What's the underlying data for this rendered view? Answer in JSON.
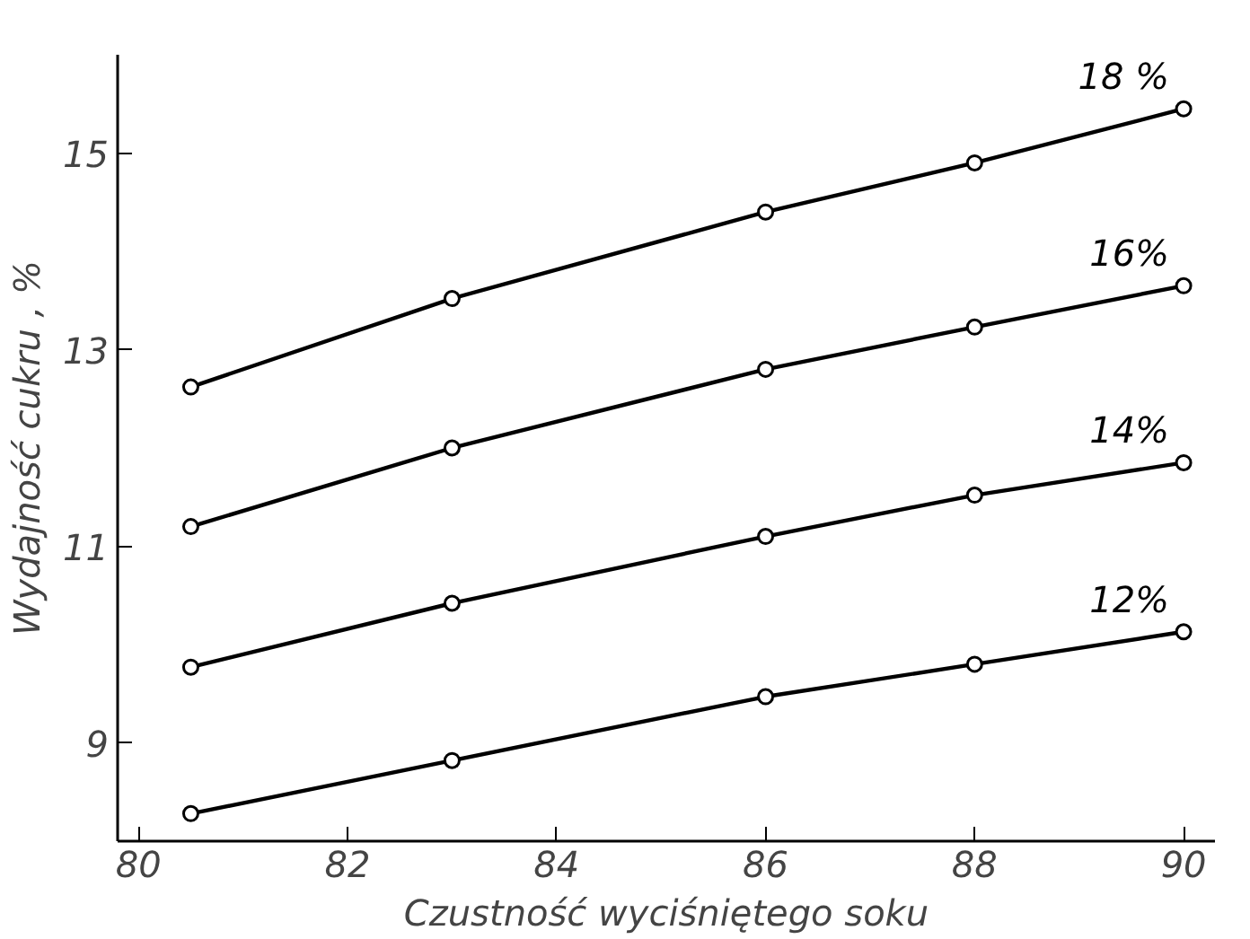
{
  "chart_data": {
    "type": "line",
    "xlabel": "Czustność wyciśniętego soku",
    "ylabel": "Wydajność cukru , %",
    "x": [
      80.5,
      83,
      86,
      88,
      90
    ],
    "series": [
      {
        "name": "18 %",
        "color": "#000000",
        "values": [
          12.62,
          13.52,
          14.4,
          14.9,
          15.45
        ]
      },
      {
        "name": "16%",
        "color": "#000000",
        "values": [
          11.2,
          12.0,
          12.8,
          13.23,
          13.65
        ]
      },
      {
        "name": "14%",
        "color": "#000000",
        "values": [
          9.77,
          10.42,
          11.1,
          11.52,
          11.85
        ]
      },
      {
        "name": "12%",
        "color": "#000000",
        "values": [
          8.28,
          8.82,
          9.47,
          9.8,
          10.13
        ]
      }
    ],
    "xlim": [
      79.8,
      90.3
    ],
    "ylim": [
      8.0,
      16.0
    ],
    "xticks": [
      80,
      82,
      84,
      86,
      88,
      90
    ],
    "yticks": [
      9,
      11,
      13,
      15
    ],
    "grid": false,
    "marker": "circle",
    "line_style": "solid"
  }
}
